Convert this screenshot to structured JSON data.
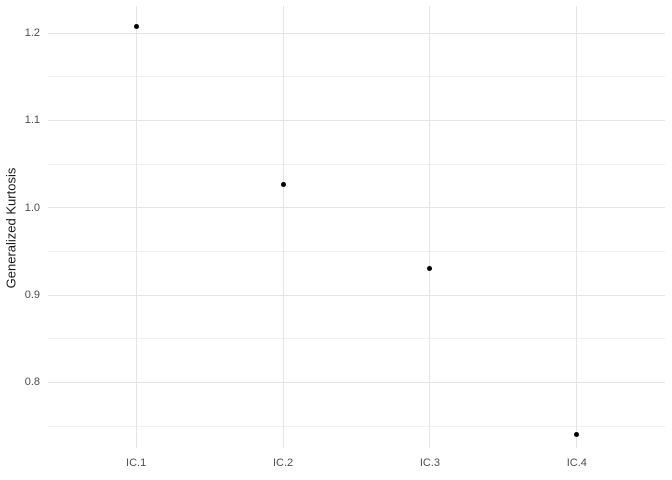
{
  "chart_data": {
    "type": "scatter",
    "title": "",
    "xlabel": "",
    "ylabel": "Generalized Kurtosis",
    "categories": [
      "IC.1",
      "IC.2",
      "IC.3",
      "IC.4"
    ],
    "values": [
      1.207,
      1.027,
      0.93,
      0.741
    ],
    "y_tick_labels": [
      "0.8",
      "0.9",
      "1.0",
      "1.1",
      "1.2"
    ],
    "y_minor_ticks": [
      0.75,
      0.85,
      0.95,
      1.05,
      1.15
    ],
    "ylim": [
      0.725,
      1.231
    ],
    "grid": "on",
    "legend": "none",
    "colors": {
      "background": "#ffffff",
      "point": "#000000",
      "major_grid": "#e4e4e4",
      "minor_grid": "#f0f0f0",
      "tick_label": "#4d4d4d",
      "axis_title": "#1a1a1a"
    }
  }
}
